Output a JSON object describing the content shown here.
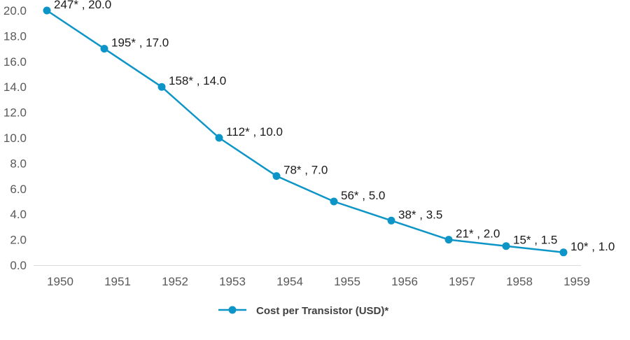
{
  "chart_data": {
    "type": "line",
    "x": [
      "1950",
      "1951",
      "1952",
      "1953",
      "1954",
      "1955",
      "1956",
      "1957",
      "1958",
      "1959"
    ],
    "series": [
      {
        "name": "Cost per Transistor (USD)*",
        "values": [
          20.0,
          17.0,
          14.0,
          10.0,
          7.0,
          5.0,
          3.5,
          2.0,
          1.5,
          1.0
        ],
        "labels": [
          "247* , 20.0",
          "195* , 17.0",
          "158* , 14.0",
          "112* , 10.0",
          "78* , 7.0",
          "56* , 5.0",
          "38* , 3.5",
          "21* , 2.0",
          "15* , 1.5",
          "10* , 1.0"
        ]
      }
    ],
    "y_ticks": [
      "0.0",
      "2.0",
      "4.0",
      "6.0",
      "8.0",
      "10.0",
      "12.0",
      "14.0",
      "16.0",
      "18.0",
      "20.0"
    ],
    "ylim": [
      0,
      20
    ],
    "grid": false,
    "legend_position": "bottom-center",
    "colors": {
      "series": "#0E95C8",
      "axis": "#d9d9d9",
      "tick_text": "#595959"
    }
  }
}
